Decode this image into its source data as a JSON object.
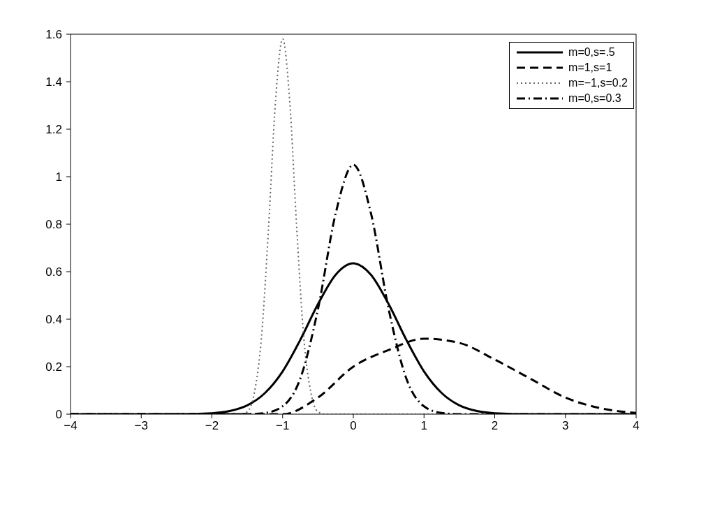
{
  "chart_data": {
    "type": "line",
    "xlim": [
      -4,
      4
    ],
    "xticks": [
      {
        "value": -4,
        "label": "−4"
      },
      {
        "value": -3,
        "label": "−3"
      },
      {
        "value": -2,
        "label": "−2"
      },
      {
        "value": -1,
        "label": "−1"
      },
      0,
      1,
      2,
      3,
      4
    ],
    "ylim": [
      0,
      1.6
    ],
    "yticks": [
      0,
      0.2,
      0.4,
      0.6,
      0.8,
      1,
      1.2,
      1.4,
      1.6
    ],
    "grid": false,
    "legend": "top right",
    "marker": "none",
    "series": [
      {
        "name": "m=0,s=.5",
        "color": "#000000",
        "line_style": "solid",
        "x": [
          -4,
          -3,
          -2.5,
          -2,
          -1.75,
          -1.5,
          -1.25,
          -1,
          -0.75,
          -0.5,
          -0.25,
          0,
          0.25,
          0.5,
          0.75,
          1,
          1.25,
          1.5,
          1.75,
          2,
          2.5,
          3,
          4
        ],
        "values": [
          0,
          0,
          0,
          0.004,
          0.013,
          0.037,
          0.089,
          0.18,
          0.313,
          0.463,
          0.587,
          0.635,
          0.587,
          0.463,
          0.313,
          0.18,
          0.089,
          0.037,
          0.013,
          0.004,
          0,
          0,
          0
        ]
      },
      {
        "name": "m=1,s=1",
        "color": "#000000",
        "line_style": "dashed",
        "x": [
          -4,
          -1,
          -0.5,
          0,
          0.5,
          1,
          1.5,
          2,
          2.5,
          3,
          3.5,
          4
        ],
        "values": [
          0,
          0,
          0.07,
          0.2,
          0.27,
          0.318,
          0.3,
          0.23,
          0.15,
          0.07,
          0.025,
          0.005
        ]
      },
      {
        "name": "m=−1,s=0.2",
        "color": "#666666",
        "line_style": "dotted",
        "x": [
          -4,
          -1.7,
          -1.6,
          -1.5,
          -1.4,
          -1.3,
          -1.2,
          -1.1,
          -1,
          -0.9,
          -0.8,
          -0.7,
          -0.6,
          -0.5,
          -0.4,
          -0.3,
          4
        ],
        "values": [
          0,
          0,
          0,
          0.01,
          0.09,
          0.32,
          0.78,
          1.32,
          1.58,
          1.32,
          0.78,
          0.32,
          0.09,
          0.01,
          0,
          0,
          0
        ]
      },
      {
        "name": "m=0,s=0.3",
        "color": "#000000",
        "line_style": "dashdot",
        "x": [
          -4,
          -1.5,
          -1.25,
          -1,
          -0.75,
          -0.5,
          -0.25,
          0,
          0.25,
          0.5,
          0.75,
          1,
          1.25,
          1.5,
          4
        ],
        "values": [
          0,
          0,
          0.005,
          0.033,
          0.15,
          0.442,
          0.845,
          1.05,
          0.845,
          0.442,
          0.15,
          0.033,
          0.005,
          0,
          0
        ]
      }
    ]
  }
}
